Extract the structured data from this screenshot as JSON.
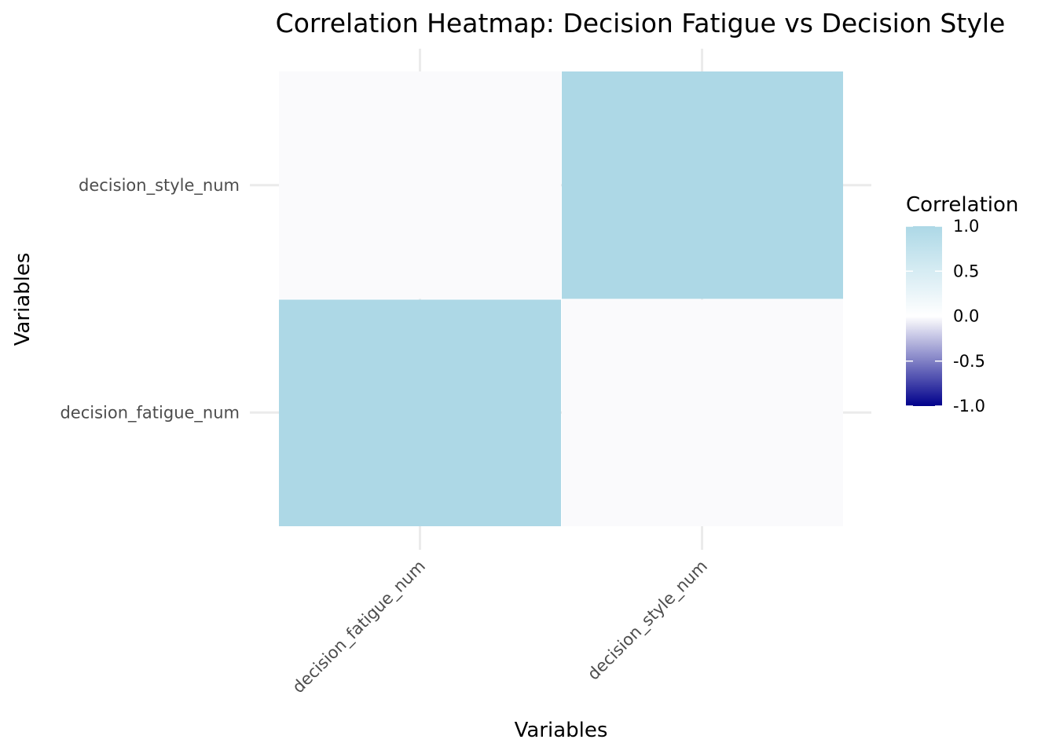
{
  "chart_data": {
    "type": "heatmap",
    "title": "Correlation Heatmap: Decision Fatigue vs Decision Style",
    "xlabel": "Variables",
    "ylabel": "Variables",
    "x_categories": [
      "decision_fatigue_num",
      "decision_style_num"
    ],
    "y_categories": [
      "decision_fatigue_num",
      "decision_style_num"
    ],
    "cells": [
      {
        "x": "decision_fatigue_num",
        "y": "decision_fatigue_num",
        "value": 1.0
      },
      {
        "x": "decision_style_num",
        "y": "decision_fatigue_num",
        "value": null
      },
      {
        "x": "decision_fatigue_num",
        "y": "decision_style_num",
        "value": null
      },
      {
        "x": "decision_style_num",
        "y": "decision_style_num",
        "value": 1.0
      }
    ],
    "na_color": "#fafafc",
    "color_scale": {
      "low": "#00008b",
      "mid": "#ffffff",
      "high": "#add8e6",
      "limits": [
        -1,
        1
      ]
    },
    "legend": {
      "title": "Correlation",
      "position": "right",
      "ticks": [
        1.0,
        0.5,
        0.0,
        -0.5,
        -1.0
      ],
      "tick_labels": [
        "1.0",
        "0.5",
        "0.0",
        "-0.5",
        "-1.0"
      ]
    },
    "grid": true
  }
}
